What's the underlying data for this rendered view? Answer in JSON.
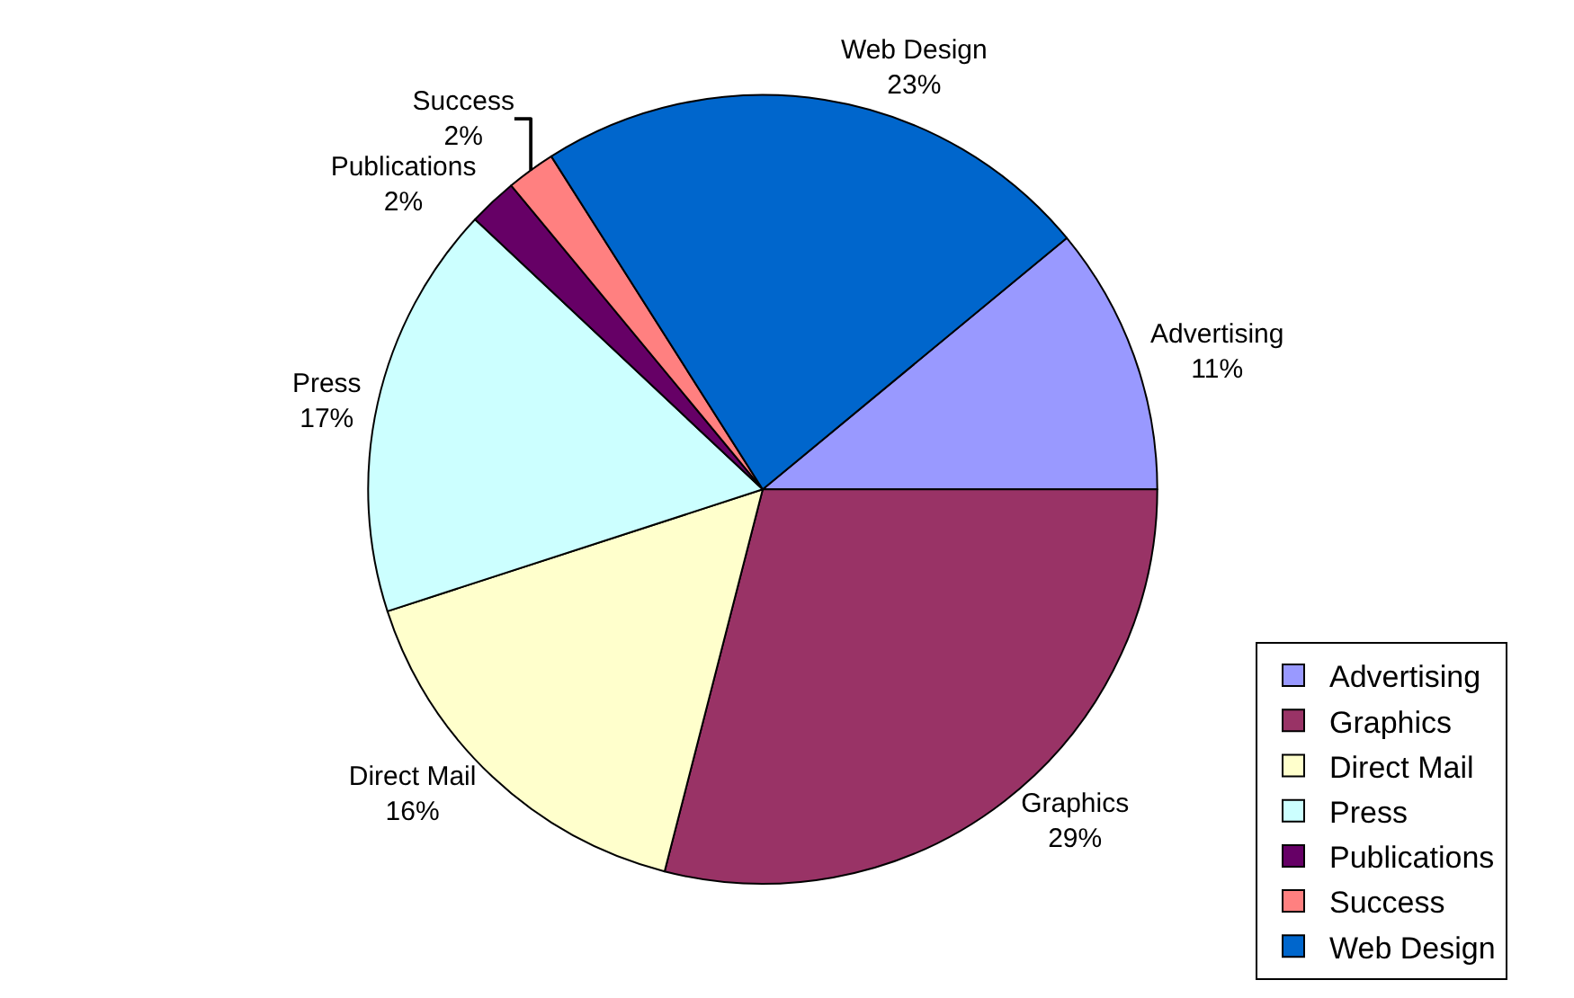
{
  "chart_data": {
    "type": "pie",
    "categories": [
      "Advertising",
      "Graphics",
      "Direct Mail",
      "Press",
      "Publications",
      "Success",
      "Web Design"
    ],
    "values": [
      11,
      29,
      16,
      17,
      2,
      2,
      23
    ],
    "value_labels": [
      "11%",
      "29%",
      "16%",
      "17%",
      "2%",
      "2%",
      "23%"
    ],
    "colors": [
      "#9999ff",
      "#993366",
      "#ffffcc",
      "#ccffff",
      "#660066",
      "#ff8080",
      "#0066cc"
    ],
    "legend": "bottom right"
  }
}
